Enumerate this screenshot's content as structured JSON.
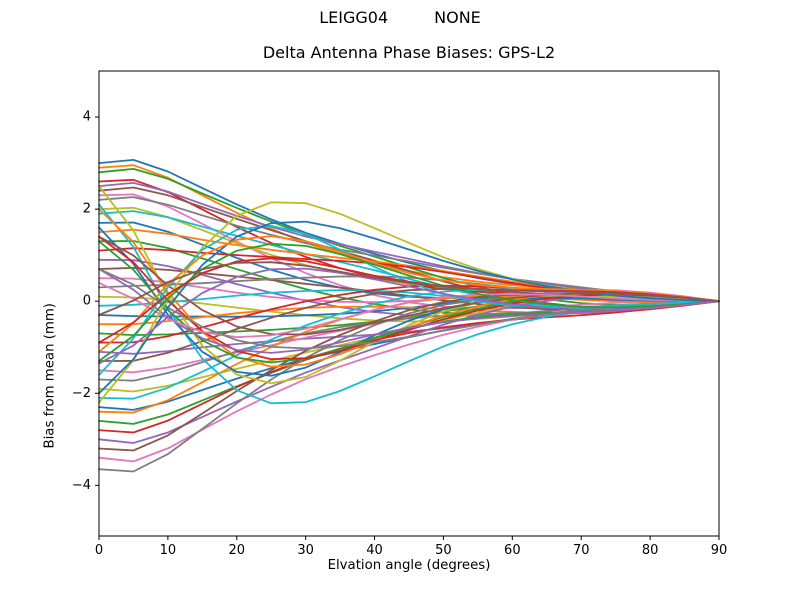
{
  "header": {
    "station_id": "LEIGG04",
    "radome_label": "NONE"
  },
  "chart_data": {
    "type": "line",
    "title": "Delta Antenna Phase Biases: GPS-L2",
    "suptitle_left": "LEIGG04",
    "suptitle_right": "NONE",
    "xlabel": "Elvation angle (degrees)",
    "ylabel": "Bias from mean (mm)",
    "xlim": [
      0,
      90
    ],
    "ylim": [
      -5.1,
      5.0
    ],
    "xticks": [
      0,
      10,
      20,
      30,
      40,
      50,
      60,
      70,
      80,
      90
    ],
    "yticks": [
      -4,
      -2,
      0,
      2,
      4
    ],
    "grid": false,
    "legend": "none",
    "line_width": 1.8,
    "palette": [
      "#1f77b4",
      "#ff7f0e",
      "#2ca02c",
      "#d62728",
      "#9467bd",
      "#8c564b",
      "#e377c2",
      "#7f7f7f",
      "#bcbd22",
      "#17becf"
    ],
    "x": [
      0,
      5,
      10,
      15,
      20,
      25,
      30,
      35,
      40,
      45,
      50,
      55,
      60,
      65,
      70,
      75,
      80,
      85,
      90
    ],
    "series_encoding": "values[j] = coeffs[0]*basis.decay[j] + coeffs[1]*basis.cross[j] + coeffs[2]*basis.mid[j] + coeffs[3]*basis.high[j]; all curves end at 0 mm at 90 deg",
    "basis": {
      "decay": [
        1.0,
        1.02,
        0.93,
        0.8,
        0.67,
        0.55,
        0.44,
        0.35,
        0.27,
        0.2,
        0.14,
        0.095,
        0.06,
        0.04,
        0.025,
        0.015,
        0.008,
        0.003,
        0
      ],
      "cross": [
        1.0,
        0.55,
        -0.1,
        -0.6,
        -0.9,
        -1.0,
        -0.95,
        -0.8,
        -0.62,
        -0.45,
        -0.3,
        -0.19,
        -0.11,
        -0.06,
        -0.03,
        -0.015,
        -0.007,
        -0.002,
        0
      ],
      "mid": [
        0,
        0.06,
        0.18,
        0.34,
        0.52,
        0.68,
        0.8,
        0.88,
        0.9,
        0.84,
        0.7,
        0.52,
        0.33,
        0.15,
        0.0,
        -0.1,
        -0.12,
        -0.08,
        0
      ],
      "high": [
        0,
        0.01,
        0.03,
        0.07,
        0.12,
        0.18,
        0.25,
        0.32,
        0.39,
        0.45,
        0.49,
        0.5,
        0.49,
        0.46,
        0.41,
        0.33,
        0.23,
        0.12,
        0
      ]
    },
    "series": [
      [
        3.0,
        0,
        0.1,
        0.33
      ],
      [
        2.9,
        0,
        -0.15,
        0.45
      ],
      [
        2.8,
        0,
        0.35,
        -0.27
      ],
      [
        2.6,
        0,
        -0.3,
        0.22
      ],
      [
        2.5,
        0,
        0.22,
        0.52
      ],
      [
        2.4,
        0,
        0.45,
        -0.45
      ],
      [
        2.3,
        0,
        -0.4,
        -0.33
      ],
      [
        2.2,
        0,
        0.18,
        0.6
      ],
      [
        2.0,
        0,
        -0.25,
        0.42
      ],
      [
        1.9,
        0,
        0.4,
        -0.52
      ],
      [
        1.7,
        0,
        -0.45,
        0.3
      ],
      [
        1.5,
        0,
        0.3,
        0.48
      ],
      [
        1.3,
        0,
        -0.2,
        -0.6
      ],
      [
        1.1,
        0,
        0.42,
        0.38
      ],
      [
        0.9,
        0,
        -0.35,
        -0.42
      ],
      [
        0.7,
        0,
        0.25,
        -0.52
      ],
      [
        0.5,
        0,
        -0.42,
        0.57
      ],
      [
        0.3,
        0,
        0.38,
        0.3
      ],
      [
        0.1,
        0,
        -0.28,
        -0.5
      ],
      [
        -0.1,
        0,
        0.45,
        -0.38
      ],
      [
        -0.3,
        0,
        -0.38,
        0.52
      ],
      [
        -0.5,
        0,
        0.28,
        -0.6
      ],
      [
        -0.7,
        0,
        -0.45,
        0.38
      ],
      [
        -0.9,
        0,
        0.35,
        0.45
      ],
      [
        -1.1,
        0,
        -0.25,
        -0.52
      ],
      [
        -1.3,
        0,
        0.45,
        0.27
      ],
      [
        -1.5,
        0,
        -0.35,
        0.6
      ],
      [
        -1.7,
        0,
        0.2,
        -0.45
      ],
      [
        -1.9,
        0,
        -0.45,
        0.33
      ],
      [
        -2.1,
        0,
        0.32,
        0.57
      ],
      [
        -2.3,
        0,
        -0.18,
        -0.38
      ],
      [
        -2.4,
        0,
        0.42,
        0.22
      ],
      [
        -2.6,
        0,
        -0.32,
        0.5
      ],
      [
        -2.8,
        0,
        0.15,
        -0.57
      ],
      [
        -3.0,
        0,
        -0.42,
        0.42
      ],
      [
        -3.2,
        0,
        0.25,
        0.52
      ],
      [
        -3.4,
        0,
        -0.15,
        -0.3
      ],
      [
        -3.65,
        0,
        0.35,
        0.38
      ],
      [
        0.3,
        2.2,
        0.25,
        0.45
      ],
      [
        0.1,
        2.0,
        -0.3,
        -0.38
      ],
      [
        -0.2,
        1.8,
        0.35,
        0.3
      ],
      [
        0.4,
        1.6,
        -0.2,
        0.52
      ],
      [
        -0.1,
        1.4,
        0.3,
        -0.45
      ],
      [
        0.2,
        1.2,
        -0.35,
        0.38
      ],
      [
        -0.3,
        1.0,
        0.2,
        -0.52
      ],
      [
        0.5,
        0.9,
        -0.25,
        0.45
      ],
      [
        -0.4,
        0.8,
        0.32,
        0.33
      ],
      [
        0.0,
        0.7,
        -0.32,
        -0.42
      ],
      [
        -0.2,
        -2.0,
        0.28,
        0.38
      ],
      [
        0.2,
        -1.8,
        -0.28,
        -0.45
      ],
      [
        -0.4,
        -1.6,
        0.35,
        0.42
      ],
      [
        0.3,
        -1.4,
        -0.35,
        0.48
      ],
      [
        -0.1,
        -1.2,
        0.25,
        -0.38
      ],
      [
        0.1,
        -1.0,
        -0.3,
        0.45
      ],
      [
        -0.5,
        -0.85,
        0.3,
        -0.48
      ],
      [
        0.4,
        -0.7,
        -0.22,
        0.42
      ]
    ]
  }
}
